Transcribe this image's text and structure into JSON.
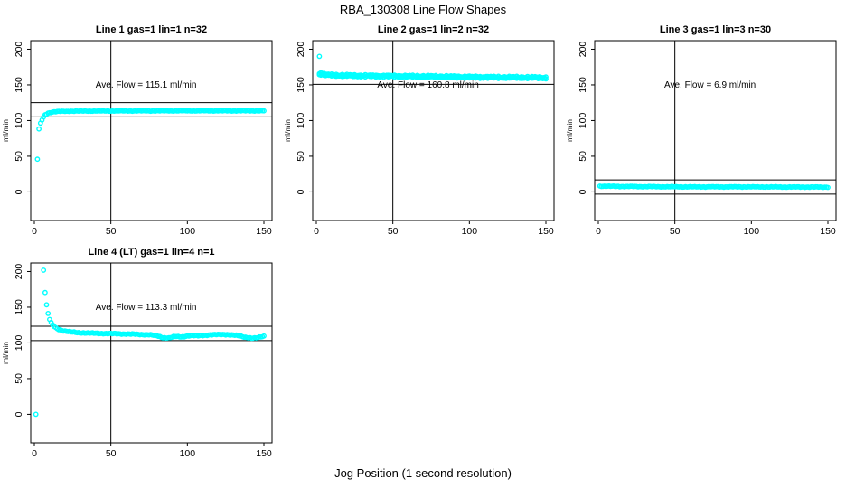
{
  "page": {
    "title": "RBA_130308  Line Flow Shapes",
    "xlabel": "Jog Position (1 second resolution)"
  },
  "chart_data": {
    "type": "scatter",
    "title": "RBA_130308  Line Flow Shapes",
    "xlabel": "Jog Position (1 second resolution)",
    "ylabel": "ml/min",
    "point_color": "#00FFFF",
    "axis_color": "#000000",
    "grid": false,
    "x_ticks": [
      0,
      50,
      100,
      150
    ],
    "y_ticks": [
      0,
      50,
      100,
      150,
      200
    ],
    "xlim": [
      -2,
      155
    ],
    "ylim": [
      -40,
      212
    ],
    "layout": {
      "rows": 2,
      "cols": 3,
      "empty_cells": [
        4,
        5
      ]
    },
    "panels": [
      {
        "title": "Line 1 gas=1 lin=1 n=32",
        "annotation": "Ave. Flow =  115.1  ml/min",
        "ave_flow": 115.1,
        "ref_lines": [
          125.1,
          105.1
        ],
        "vline_x": 50,
        "x_start": 2,
        "x_end": 150,
        "noise_amp": 0.5,
        "rows": 1,
        "isolated_points": [],
        "anchors": [
          [
            2,
            46
          ],
          [
            3,
            88
          ],
          [
            4,
            96
          ],
          [
            5,
            101
          ],
          [
            6,
            105
          ],
          [
            7,
            108
          ],
          [
            9,
            110.5
          ],
          [
            12,
            112
          ],
          [
            16,
            112.8
          ],
          [
            25,
            113.2
          ],
          [
            50,
            113.4
          ],
          [
            100,
            113.6
          ],
          [
            150,
            113.6
          ]
        ]
      },
      {
        "title": "Line 2 gas=1 lin=2 n=32",
        "annotation": "Ave. Flow =  160.8  ml/min",
        "ave_flow": 160.8,
        "ref_lines": [
          170.8,
          150.8
        ],
        "vline_x": 50,
        "x_start": 2,
        "x_end": 150,
        "noise_amp": 1.8,
        "rows": 2,
        "isolated_points": [
          [
            2,
            190
          ],
          [
            3,
            167
          ]
        ],
        "anchors": [
          [
            4,
            165
          ],
          [
            6,
            164
          ],
          [
            10,
            163.5
          ],
          [
            20,
            163
          ],
          [
            40,
            162.5
          ],
          [
            60,
            162
          ],
          [
            80,
            161.5
          ],
          [
            100,
            161
          ],
          [
            120,
            160.5
          ],
          [
            150,
            160
          ]
        ]
      },
      {
        "title": "Line 3 gas=1 lin=3 n=30",
        "annotation": "Ave. Flow =  6.9  ml/min",
        "ave_flow": 6.9,
        "ref_lines": [
          16.9,
          -3.1
        ],
        "vline_x": 50,
        "x_start": 1,
        "x_end": 150,
        "noise_amp": 0.55,
        "rows": 1,
        "isolated_points": [],
        "anchors": [
          [
            1,
            8
          ],
          [
            20,
            7.5
          ],
          [
            60,
            7
          ],
          [
            100,
            7
          ],
          [
            150,
            6.7
          ]
        ]
      },
      {
        "title": "Line 4 (LT) gas=1 lin=4 n=1",
        "annotation": "Ave. Flow =  113.3  ml/min",
        "ave_flow": 113.3,
        "ref_lines": [
          123.3,
          103.3
        ],
        "vline_x": 50,
        "x_start": 6,
        "x_end": 150,
        "noise_amp": 0.7,
        "rows": 1,
        "isolated_points": [
          [
            1,
            0
          ]
        ],
        "anchors": [
          [
            6,
            202
          ],
          [
            7,
            171
          ],
          [
            8,
            153
          ],
          [
            9,
            141
          ],
          [
            10,
            133
          ],
          [
            11,
            128
          ],
          [
            12,
            125
          ],
          [
            14,
            121
          ],
          [
            16,
            119
          ],
          [
            19,
            117
          ],
          [
            23,
            115.5
          ],
          [
            28,
            114.5
          ],
          [
            35,
            113.8
          ],
          [
            45,
            113.2
          ],
          [
            55,
            112.8
          ],
          [
            65,
            112.2
          ],
          [
            75,
            111.5
          ],
          [
            80,
            110
          ],
          [
            84,
            107.5
          ],
          [
            88,
            107
          ],
          [
            92,
            109
          ],
          [
            96,
            108.5
          ],
          [
            101,
            110
          ],
          [
            106,
            110
          ],
          [
            112,
            110.8
          ],
          [
            118,
            111.5
          ],
          [
            124,
            112
          ],
          [
            129,
            111
          ],
          [
            134,
            110
          ],
          [
            138,
            108
          ],
          [
            142,
            106.5
          ],
          [
            145,
            106.8
          ],
          [
            148,
            108.5
          ],
          [
            150,
            109.5
          ]
        ]
      }
    ]
  }
}
